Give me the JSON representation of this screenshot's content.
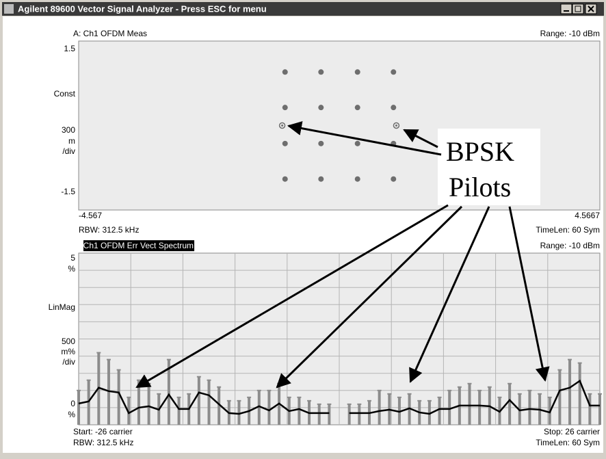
{
  "window": {
    "title": "Agilent 89600 Vector Signal Analyzer - Press ESC for menu"
  },
  "chart_data": [
    {
      "type": "scatter",
      "header": "A: Ch1 OFDM Meas",
      "range": "Range: -10 dBm",
      "xlim": [
        -4.567,
        4.5667
      ],
      "xticks": [
        -4.567,
        4.5667
      ],
      "ylim": [
        -1.5,
        1.5
      ],
      "yticks": [
        1.5,
        -1.5
      ],
      "y_scale_labels": [
        "Const",
        "300",
        "m",
        "/div"
      ],
      "footer_left": "RBW: 312.5 kHz",
      "footer_right": "TimeLen: 60 Sym",
      "color": "#6e6e6e",
      "series": [
        {
          "x": [
            -0.95,
            -0.32,
            0.32,
            0.95,
            -0.95,
            -0.32,
            0.32,
            0.95,
            -0.95,
            -0.32,
            0.32,
            0.95,
            -0.95,
            -0.32,
            0.32,
            0.95
          ],
          "y": [
            0.95,
            0.95,
            0.95,
            0.95,
            0.32,
            0.32,
            0.32,
            0.32,
            -0.32,
            -0.32,
            -0.32,
            -0.32,
            -0.95,
            -0.95,
            -0.95,
            -0.95
          ]
        },
        {
          "x": [
            -1.0,
            1.0
          ],
          "y": [
            0,
            0
          ],
          "marker": "ring"
        }
      ]
    },
    {
      "type": "line",
      "header": "B: Ch1 OFDM Err Vect Spectrum",
      "range": "Range: -10 dBm",
      "xlim": [
        -26,
        26
      ],
      "ylim": [
        0,
        5
      ],
      "yticks": [
        5,
        0
      ],
      "y_unit": "%",
      "y_scale_labels": [
        "LinMag",
        "500",
        "m%",
        "/div"
      ],
      "grid": true,
      "grid_divisions": 10,
      "start_label": "Start: -26 carrier",
      "stop_label": "Stop: 26 carrier",
      "footer_left": "RBW: 312.5 kHz",
      "footer_right": "TimeLen: 60 Sym",
      "x": [
        -26,
        -25,
        -24,
        -23,
        -22,
        -21,
        -20,
        -19,
        -18,
        -17,
        -16,
        -15,
        -14,
        -13,
        -12,
        -11,
        -10,
        -9,
        -8,
        -7,
        -6,
        -5,
        -4,
        -3,
        -2,
        -1,
        0,
        1,
        2,
        3,
        4,
        5,
        6,
        7,
        8,
        9,
        10,
        11,
        12,
        13,
        14,
        15,
        16,
        17,
        18,
        19,
        20,
        21,
        22,
        23,
        24,
        25,
        26
      ],
      "series": [
        {
          "style": "bar",
          "color": "#8c8c8c",
          "values": [
            1.0,
            1.3,
            2.1,
            1.9,
            1.6,
            0.8,
            1.3,
            1.2,
            0.9,
            1.9,
            0.8,
            0.9,
            1.4,
            1.3,
            1.1,
            0.7,
            0.7,
            0.8,
            1.0,
            1.0,
            1.2,
            0.8,
            0.8,
            0.7,
            0.6,
            0.6,
            null,
            0.6,
            0.6,
            0.7,
            1.0,
            0.9,
            0.8,
            0.9,
            0.7,
            0.7,
            0.8,
            1.0,
            1.1,
            1.2,
            1.0,
            1.1,
            0.8,
            1.2,
            0.9,
            1.0,
            0.9,
            0.8,
            1.6,
            1.9,
            1.8,
            0.9,
            0.9
          ]
        },
        {
          "style": "line",
          "color": "#000000",
          "values": [
            0.62,
            0.68,
            1.08,
            0.98,
            0.94,
            0.34,
            0.5,
            0.54,
            0.44,
            0.88,
            0.46,
            0.46,
            0.94,
            0.86,
            0.6,
            0.34,
            0.32,
            0.4,
            0.54,
            0.42,
            0.62,
            0.4,
            0.46,
            0.34,
            0.34,
            0.34,
            null,
            0.34,
            0.34,
            0.34,
            0.4,
            0.44,
            0.38,
            0.48,
            0.36,
            0.32,
            0.46,
            0.46,
            0.56,
            0.56,
            0.56,
            0.54,
            0.38,
            0.72,
            0.42,
            0.46,
            0.44,
            0.36,
            1.0,
            1.08,
            1.28,
            0.56,
            0.56
          ]
        }
      ]
    }
  ],
  "annotation": {
    "lines": [
      "BPSK",
      "Pilots"
    ]
  }
}
